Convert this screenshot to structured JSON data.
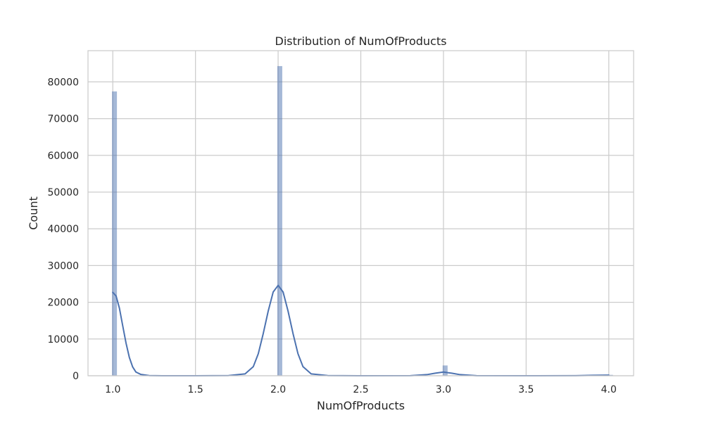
{
  "chart_data": {
    "type": "bar",
    "title": "Distribution of NumOfProducts",
    "xlabel": "NumOfProducts",
    "ylabel": "Count",
    "xlim": [
      0.85,
      4.15
    ],
    "ylim": [
      0,
      88500
    ],
    "x_ticks": [
      "1.0",
      "1.5",
      "2.0",
      "2.5",
      "3.0",
      "3.5",
      "4.0"
    ],
    "x_tick_values": [
      1.0,
      1.5,
      2.0,
      2.5,
      3.0,
      3.5,
      4.0
    ],
    "y_ticks": [
      "0",
      "10000",
      "20000",
      "30000",
      "40000",
      "50000",
      "60000",
      "70000",
      "80000"
    ],
    "y_tick_values": [
      0,
      10000,
      20000,
      30000,
      40000,
      50000,
      60000,
      70000,
      80000
    ],
    "grid": true,
    "bin_width": 0.03,
    "bars": [
      {
        "x": 1.0,
        "value": 77400
      },
      {
        "x": 2.0,
        "value": 84300
      },
      {
        "x": 3.0,
        "value": 2800
      },
      {
        "x": 4.0,
        "value": 250
      }
    ],
    "kde": {
      "color": "#4c72b0",
      "points": [
        [
          1.0,
          22700
        ],
        [
          1.02,
          21700
        ],
        [
          1.04,
          18400
        ],
        [
          1.06,
          13600
        ],
        [
          1.08,
          8900
        ],
        [
          1.1,
          5000
        ],
        [
          1.12,
          2400
        ],
        [
          1.14,
          1000
        ],
        [
          1.17,
          350
        ],
        [
          1.22,
          60
        ],
        [
          1.3,
          10
        ],
        [
          1.5,
          0
        ],
        [
          1.7,
          60
        ],
        [
          1.8,
          500
        ],
        [
          1.85,
          2500
        ],
        [
          1.88,
          6000
        ],
        [
          1.91,
          11500
        ],
        [
          1.94,
          17600
        ],
        [
          1.97,
          22800
        ],
        [
          2.0,
          24600
        ],
        [
          2.03,
          22800
        ],
        [
          2.06,
          17600
        ],
        [
          2.09,
          11500
        ],
        [
          2.12,
          6000
        ],
        [
          2.15,
          2500
        ],
        [
          2.2,
          500
        ],
        [
          2.3,
          60
        ],
        [
          2.5,
          0
        ],
        [
          2.8,
          30
        ],
        [
          2.9,
          300
        ],
        [
          2.95,
          700
        ],
        [
          3.0,
          1000
        ],
        [
          3.05,
          700
        ],
        [
          3.1,
          300
        ],
        [
          3.2,
          30
        ],
        [
          3.5,
          0
        ],
        [
          3.8,
          20
        ],
        [
          3.9,
          110
        ],
        [
          4.0,
          170
        ]
      ]
    },
    "colors": {
      "bar_fill": "#4c72b0",
      "bar_opacity": 0.5,
      "grid": "#cccccc",
      "spine": "#cccccc"
    }
  }
}
